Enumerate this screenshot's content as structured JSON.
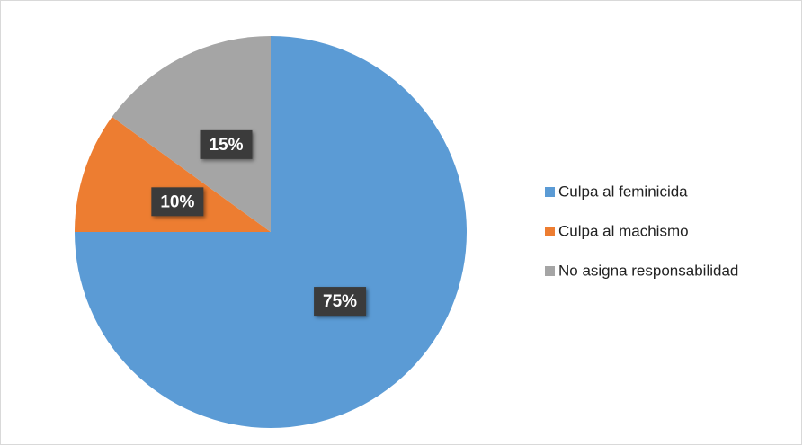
{
  "chart_data": {
    "type": "pie",
    "categories": [
      "Culpa al feminicida",
      "Culpa al machismo",
      "No asigna responsabilidad"
    ],
    "values": [
      75,
      10,
      15
    ],
    "value_labels": [
      "75%",
      "10%",
      "15%"
    ],
    "colors": [
      "#5b9bd5",
      "#ed7d31",
      "#a5a5a5"
    ],
    "legend": "right"
  }
}
